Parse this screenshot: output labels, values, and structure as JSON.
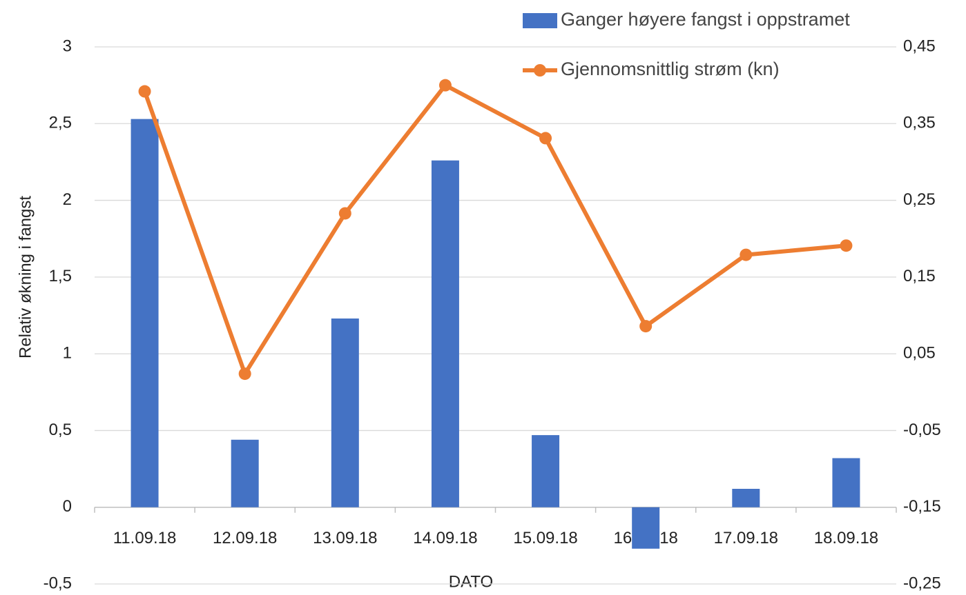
{
  "chart_data": {
    "type": "bar_line",
    "y_axis_label": "Relativ økning i fangst",
    "x_axis_label": "DATO",
    "categories": [
      "11.09.18",
      "12.09.18",
      "13.09.18",
      "14.09.18",
      "15.09.18",
      "16.09.18",
      "17.09.18",
      "18.09.18"
    ],
    "series": [
      {
        "name": "Ganger høyere fangst i oppstramet",
        "type": "bar",
        "color": "#4472c4",
        "values": [
          2.53,
          0.44,
          1.23,
          2.26,
          0.47,
          -0.27,
          0.12,
          0.32
        ]
      },
      {
        "name": "Gjennomsnittlig strøm (kn)",
        "type": "line",
        "axis": "y2",
        "color": "#ed7d31",
        "values": [
          0.392,
          0.024,
          0.233,
          0.4,
          0.331,
          0.086,
          0.179,
          0.191
        ]
      }
    ],
    "ylim": [
      -0.5,
      3
    ],
    "yticks": [
      {
        "value": -0.5,
        "label": "-0,5"
      },
      0,
      {
        "value": 0.5,
        "label": "0,5"
      },
      1,
      {
        "value": 1.5,
        "label": "1,5"
      },
      2,
      {
        "value": 2.5,
        "label": "2,5"
      },
      3
    ],
    "y2lim": [
      -0.25,
      0.45
    ],
    "y2ticks": [
      {
        "value": -0.25,
        "label": "-0,25"
      },
      {
        "value": -0.15,
        "label": "-0,15"
      },
      {
        "value": -0.05,
        "label": "-0,05"
      },
      {
        "value": 0.05,
        "label": "0,05"
      },
      {
        "value": 0.15,
        "label": "0,15"
      },
      {
        "value": 0.25,
        "label": "0,25"
      },
      {
        "value": 0.35,
        "label": "0,35"
      },
      {
        "value": 0.45,
        "label": "0,45"
      }
    ],
    "grid": true,
    "legend": "top-right"
  }
}
